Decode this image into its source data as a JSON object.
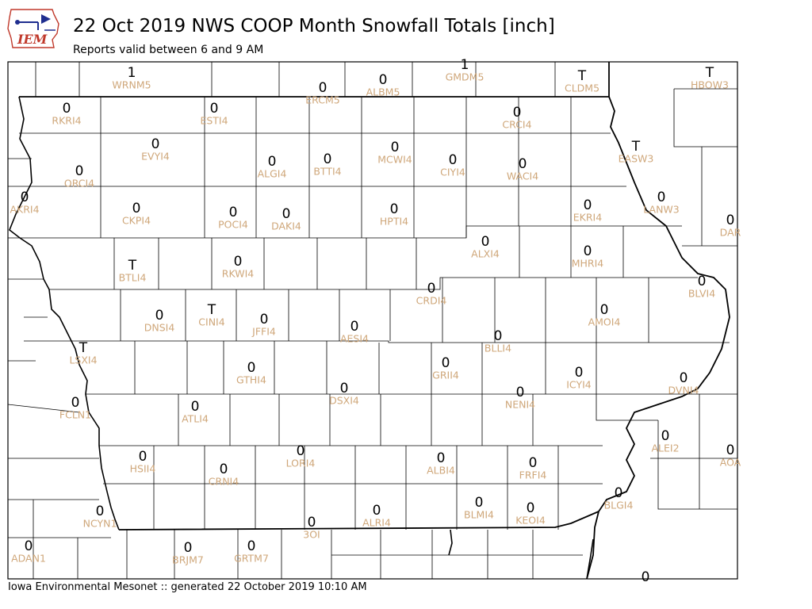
{
  "header": {
    "logo_text": "IEM",
    "title": "22 Oct 2019 NWS COOP Month Snowfall Totals [inch]",
    "subtitle": "Reports valid between 6 and 9 AM"
  },
  "footer": {
    "text": "Iowa Environmental Mesonet :: generated 22 October 2019 10:10 AM"
  },
  "colors": {
    "station_label": "#cfa77a",
    "value": "#000000",
    "logo_blue": "#1f2e8f",
    "logo_red": "#c0392b"
  },
  "stations": [
    {
      "id": "WRNM5",
      "value": "1"
    },
    {
      "id": "GMDM5",
      "value": "1"
    },
    {
      "id": "ERCM5",
      "value": "0"
    },
    {
      "id": "ALBM5",
      "value": "0"
    },
    {
      "id": "CLDM5",
      "value": "T"
    },
    {
      "id": "HBOW3",
      "value": "T"
    },
    {
      "id": "RKRI4",
      "value": "0"
    },
    {
      "id": "ESTI4",
      "value": "0"
    },
    {
      "id": "CRCI4",
      "value": "0"
    },
    {
      "id": "EVYI4",
      "value": "0"
    },
    {
      "id": "ORCI4",
      "value": "0"
    },
    {
      "id": "ALGI4",
      "value": "0"
    },
    {
      "id": "BTTI4",
      "value": "0"
    },
    {
      "id": "MCWI4",
      "value": "0"
    },
    {
      "id": "CIYI4",
      "value": "0"
    },
    {
      "id": "WACI4",
      "value": "0"
    },
    {
      "id": "EASW3",
      "value": "T"
    },
    {
      "id": "AKRI4",
      "value": "0"
    },
    {
      "id": "CKPI4",
      "value": "0"
    },
    {
      "id": "POCI4",
      "value": "0"
    },
    {
      "id": "DAKI4",
      "value": "0"
    },
    {
      "id": "HPTI4",
      "value": "0"
    },
    {
      "id": "EKRI4",
      "value": "0"
    },
    {
      "id": "LANW3",
      "value": "0"
    },
    {
      "id": "DAR",
      "value": "0"
    },
    {
      "id": "ALXI4",
      "value": "0"
    },
    {
      "id": "MHRI4",
      "value": "0"
    },
    {
      "id": "BTLI4",
      "value": "T"
    },
    {
      "id": "RKWI4",
      "value": "0"
    },
    {
      "id": "BLVI4",
      "value": "0"
    },
    {
      "id": "CRDI4",
      "value": "0"
    },
    {
      "id": "DNSI4",
      "value": "0"
    },
    {
      "id": "CINI4",
      "value": "T"
    },
    {
      "id": "JFFI4",
      "value": "0"
    },
    {
      "id": "AESI4",
      "value": "0"
    },
    {
      "id": "AMOI4",
      "value": "0"
    },
    {
      "id": "BLLI4",
      "value": "0"
    },
    {
      "id": "LSXI4",
      "value": "T"
    },
    {
      "id": "GTHI4",
      "value": "0"
    },
    {
      "id": "GRII4",
      "value": "0"
    },
    {
      "id": "ICYI4",
      "value": "0"
    },
    {
      "id": "DVNI4",
      "value": "0"
    },
    {
      "id": "DSXI4",
      "value": "0"
    },
    {
      "id": "NENI4",
      "value": "0"
    },
    {
      "id": "FCLN1",
      "value": "0"
    },
    {
      "id": "ATLI4",
      "value": "0"
    },
    {
      "id": "ALEI2",
      "value": "0"
    },
    {
      "id": "HSII4",
      "value": "0"
    },
    {
      "id": "LORI4",
      "value": "0"
    },
    {
      "id": "ALBI4",
      "value": "0"
    },
    {
      "id": "FRFI4",
      "value": "0"
    },
    {
      "id": "AOA",
      "value": "0"
    },
    {
      "id": "CRNI4",
      "value": "0"
    },
    {
      "id": "NCYN1",
      "value": "0"
    },
    {
      "id": "ALRI4",
      "value": "0"
    },
    {
      "id": "BLMI4",
      "value": "0"
    },
    {
      "id": "KEOI4",
      "value": "0"
    },
    {
      "id": "BLGI4",
      "value": "0"
    },
    {
      "id": "3OI",
      "value": "0"
    },
    {
      "id": "ADAN1",
      "value": "0"
    },
    {
      "id": "BRJM7",
      "value": "0"
    },
    {
      "id": "GRTM7",
      "value": "0"
    },
    {
      "id": "",
      "value": "0"
    }
  ]
}
